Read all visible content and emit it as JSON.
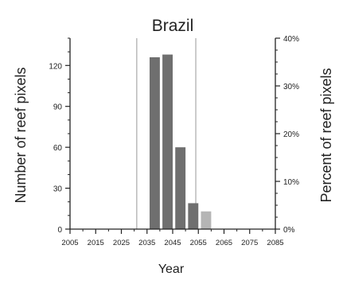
{
  "chart_data": {
    "type": "bar",
    "title": "Brazil",
    "xlabel": "Year",
    "ylabel": "Number of reef pixels",
    "y2label": "Percent of reef pixels",
    "xlim": [
      2005,
      2085
    ],
    "ylim": [
      0,
      140
    ],
    "y2lim": [
      0,
      40
    ],
    "x_ticks": [
      2005,
      2015,
      2025,
      2035,
      2045,
      2055,
      2065,
      2075,
      2085
    ],
    "y_ticks": [
      0,
      30,
      60,
      90,
      120
    ],
    "y2_ticks": [
      "0%",
      "10%",
      "20%",
      "30%",
      "40%"
    ],
    "y2_tick_values": [
      0,
      10,
      20,
      30,
      40
    ],
    "reference_lines_x": [
      2031,
      2054
    ],
    "bars": [
      {
        "x": 2038,
        "value": 126,
        "shade": "dark"
      },
      {
        "x": 2043,
        "value": 128,
        "shade": "dark"
      },
      {
        "x": 2048,
        "value": 60,
        "shade": "dark"
      },
      {
        "x": 2053,
        "value": 19,
        "shade": "dark"
      },
      {
        "x": 2058,
        "value": 13,
        "shade": "light"
      }
    ],
    "bar_width_years": 4,
    "grid": false,
    "colors": {
      "dark_bar": "#6f6f6f",
      "light_bar": "#b5b5b5",
      "reference_line": "#a9a9a9",
      "axis": "#222222"
    }
  }
}
